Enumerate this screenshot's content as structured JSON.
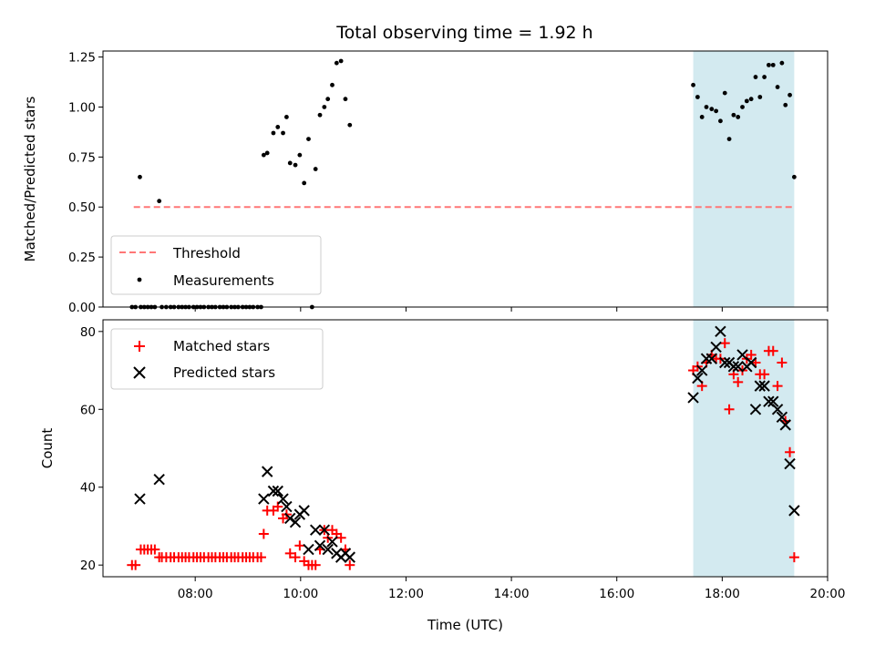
{
  "chart_data": [
    {
      "type": "scatter",
      "title": "Total observing time = 1.92 h",
      "ylabel": "Matched/Predicted stars",
      "xlim": [
        "06:15",
        "20:00"
      ],
      "ylim": [
        0,
        1.28
      ],
      "yticks": [
        "0.00",
        "0.25",
        "0.50",
        "0.75",
        "1.00",
        "1.25"
      ],
      "highlight_span": [
        "17:27",
        "19:22"
      ],
      "highlight_color": "#d3eaf0",
      "threshold": {
        "name": "Threshold",
        "y": 0.5,
        "x_from": "06:50",
        "x_to": "19:22",
        "color": "#ff7777"
      },
      "series": [
        {
          "name": "Measurements",
          "color": "#000000",
          "points": [
            [
              "06:48",
              0
            ],
            [
              "06:52",
              0
            ],
            [
              "06:58",
              0
            ],
            [
              "07:02",
              0
            ],
            [
              "07:06",
              0
            ],
            [
              "07:10",
              0
            ],
            [
              "07:14",
              0
            ],
            [
              "07:22",
              0
            ],
            [
              "07:27",
              0
            ],
            [
              "07:32",
              0
            ],
            [
              "07:36",
              0
            ],
            [
              "07:41",
              0
            ],
            [
              "07:45",
              0
            ],
            [
              "07:49",
              0
            ],
            [
              "07:53",
              0
            ],
            [
              "07:58",
              0
            ],
            [
              "08:02",
              0
            ],
            [
              "08:06",
              0
            ],
            [
              "08:10",
              0
            ],
            [
              "08:15",
              0
            ],
            [
              "08:19",
              0
            ],
            [
              "08:23",
              0
            ],
            [
              "08:28",
              0
            ],
            [
              "08:32",
              0
            ],
            [
              "08:36",
              0
            ],
            [
              "08:41",
              0
            ],
            [
              "08:45",
              0
            ],
            [
              "08:49",
              0
            ],
            [
              "08:54",
              0
            ],
            [
              "08:58",
              0
            ],
            [
              "09:02",
              0
            ],
            [
              "09:06",
              0
            ],
            [
              "09:11",
              0
            ],
            [
              "09:15",
              0
            ],
            [
              "10:13",
              0
            ],
            [
              "06:57",
              0.65
            ],
            [
              "07:19",
              0.53
            ],
            [
              "09:18",
              0.76
            ],
            [
              "09:22",
              0.77
            ],
            [
              "09:29",
              0.87
            ],
            [
              "09:34",
              0.9
            ],
            [
              "09:40",
              0.87
            ],
            [
              "09:44",
              0.95
            ],
            [
              "09:48",
              0.72
            ],
            [
              "09:54",
              0.71
            ],
            [
              "09:59",
              0.76
            ],
            [
              "10:04",
              0.62
            ],
            [
              "10:09",
              0.84
            ],
            [
              "10:17",
              0.69
            ],
            [
              "10:22",
              0.96
            ],
            [
              "10:27",
              1.0
            ],
            [
              "10:31",
              1.04
            ],
            [
              "10:36",
              1.11
            ],
            [
              "10:41",
              1.22
            ],
            [
              "10:46",
              1.23
            ],
            [
              "10:51",
              1.04
            ],
            [
              "10:56",
              0.91
            ],
            [
              "17:27",
              1.11
            ],
            [
              "17:32",
              1.05
            ],
            [
              "17:37",
              0.95
            ],
            [
              "17:42",
              1.0
            ],
            [
              "17:48",
              0.99
            ],
            [
              "17:53",
              0.98
            ],
            [
              "17:58",
              0.93
            ],
            [
              "18:03",
              1.07
            ],
            [
              "18:08",
              0.84
            ],
            [
              "18:13",
              0.96
            ],
            [
              "18:18",
              0.95
            ],
            [
              "18:23",
              1.0
            ],
            [
              "18:28",
              1.03
            ],
            [
              "18:33",
              1.04
            ],
            [
              "18:38",
              1.15
            ],
            [
              "18:43",
              1.05
            ],
            [
              "18:48",
              1.15
            ],
            [
              "18:53",
              1.21
            ],
            [
              "18:58",
              1.21
            ],
            [
              "19:03",
              1.1
            ],
            [
              "19:08",
              1.22
            ],
            [
              "19:12",
              1.01
            ],
            [
              "19:17",
              1.06
            ],
            [
              "19:22",
              0.65
            ]
          ]
        }
      ],
      "legend_position": "lower-left"
    },
    {
      "type": "scatter",
      "xlabel": "Time (UTC)",
      "ylabel": "Count",
      "xlim": [
        "06:15",
        "20:00"
      ],
      "ylim": [
        17,
        83
      ],
      "xticks": [
        "08:00",
        "10:00",
        "12:00",
        "14:00",
        "16:00",
        "18:00",
        "20:00"
      ],
      "yticks": [
        "20",
        "40",
        "60",
        "80"
      ],
      "highlight_span": [
        "17:27",
        "19:22"
      ],
      "highlight_color": "#d3eaf0",
      "series": [
        {
          "name": "Matched stars",
          "marker": "+",
          "color": "#ff0000",
          "points": [
            [
              "06:48",
              20
            ],
            [
              "06:52",
              20
            ],
            [
              "06:58",
              24
            ],
            [
              "07:02",
              24
            ],
            [
              "07:06",
              24
            ],
            [
              "07:10",
              24
            ],
            [
              "07:14",
              24
            ],
            [
              "07:19",
              22
            ],
            [
              "07:22",
              22
            ],
            [
              "07:27",
              22
            ],
            [
              "07:32",
              22
            ],
            [
              "07:36",
              22
            ],
            [
              "07:41",
              22
            ],
            [
              "07:45",
              22
            ],
            [
              "07:49",
              22
            ],
            [
              "07:53",
              22
            ],
            [
              "07:58",
              22
            ],
            [
              "08:02",
              22
            ],
            [
              "08:06",
              22
            ],
            [
              "08:10",
              22
            ],
            [
              "08:15",
              22
            ],
            [
              "08:19",
              22
            ],
            [
              "08:23",
              22
            ],
            [
              "08:28",
              22
            ],
            [
              "08:32",
              22
            ],
            [
              "08:36",
              22
            ],
            [
              "08:41",
              22
            ],
            [
              "08:45",
              22
            ],
            [
              "08:49",
              22
            ],
            [
              "08:54",
              22
            ],
            [
              "08:58",
              22
            ],
            [
              "09:02",
              22
            ],
            [
              "09:06",
              22
            ],
            [
              "09:11",
              22
            ],
            [
              "09:15",
              22
            ],
            [
              "09:18",
              28
            ],
            [
              "09:22",
              34
            ],
            [
              "09:29",
              34
            ],
            [
              "09:34",
              35
            ],
            [
              "09:40",
              32
            ],
            [
              "09:44",
              33
            ],
            [
              "09:48",
              23
            ],
            [
              "09:54",
              22
            ],
            [
              "09:59",
              25
            ],
            [
              "10:04",
              21
            ],
            [
              "10:09",
              20
            ],
            [
              "10:13",
              20
            ],
            [
              "10:17",
              20
            ],
            [
              "10:22",
              24
            ],
            [
              "10:27",
              29
            ],
            [
              "10:31",
              27
            ],
            [
              "10:36",
              29
            ],
            [
              "10:41",
              28
            ],
            [
              "10:46",
              27
            ],
            [
              "10:51",
              24
            ],
            [
              "10:56",
              20
            ],
            [
              "17:27",
              70
            ],
            [
              "17:32",
              71
            ],
            [
              "17:37",
              66
            ],
            [
              "17:42",
              72
            ],
            [
              "17:48",
              74
            ],
            [
              "17:53",
              73
            ],
            [
              "17:58",
              73
            ],
            [
              "18:03",
              77
            ],
            [
              "18:08",
              60
            ],
            [
              "18:13",
              69
            ],
            [
              "18:18",
              67
            ],
            [
              "18:23",
              70
            ],
            [
              "18:28",
              73
            ],
            [
              "18:33",
              74
            ],
            [
              "18:38",
              72
            ],
            [
              "18:43",
              69
            ],
            [
              "18:48",
              69
            ],
            [
              "18:53",
              75
            ],
            [
              "18:58",
              75
            ],
            [
              "19:03",
              66
            ],
            [
              "19:08",
              72
            ],
            [
              "19:12",
              57
            ],
            [
              "19:17",
              49
            ],
            [
              "19:22",
              22
            ]
          ]
        },
        {
          "name": "Predicted stars",
          "marker": "x",
          "color": "#000000",
          "points": [
            [
              "06:57",
              37
            ],
            [
              "07:19",
              42
            ],
            [
              "09:18",
              37
            ],
            [
              "09:22",
              44
            ],
            [
              "09:29",
              39
            ],
            [
              "09:34",
              39
            ],
            [
              "09:40",
              37
            ],
            [
              "09:44",
              35
            ],
            [
              "09:48",
              32
            ],
            [
              "09:54",
              31
            ],
            [
              "09:59",
              33
            ],
            [
              "10:04",
              34
            ],
            [
              "10:09",
              24
            ],
            [
              "10:17",
              29
            ],
            [
              "10:22",
              25
            ],
            [
              "10:27",
              29
            ],
            [
              "10:31",
              24
            ],
            [
              "10:36",
              26
            ],
            [
              "10:41",
              23
            ],
            [
              "10:46",
              22
            ],
            [
              "10:51",
              23
            ],
            [
              "10:56",
              22
            ],
            [
              "17:27",
              63
            ],
            [
              "17:32",
              68
            ],
            [
              "17:37",
              70
            ],
            [
              "17:42",
              73
            ],
            [
              "17:48",
              73
            ],
            [
              "17:53",
              76
            ],
            [
              "17:58",
              80
            ],
            [
              "18:03",
              72
            ],
            [
              "18:08",
              72
            ],
            [
              "18:13",
              71
            ],
            [
              "18:18",
              71
            ],
            [
              "18:23",
              74
            ],
            [
              "18:28",
              71
            ],
            [
              "18:33",
              72
            ],
            [
              "18:38",
              60
            ],
            [
              "18:43",
              66
            ],
            [
              "18:48",
              66
            ],
            [
              "18:53",
              62
            ],
            [
              "18:58",
              62
            ],
            [
              "19:03",
              60
            ],
            [
              "19:08",
              58
            ],
            [
              "19:12",
              56
            ],
            [
              "19:17",
              46
            ],
            [
              "19:22",
              34
            ]
          ]
        }
      ],
      "legend_position": "upper-left"
    }
  ]
}
